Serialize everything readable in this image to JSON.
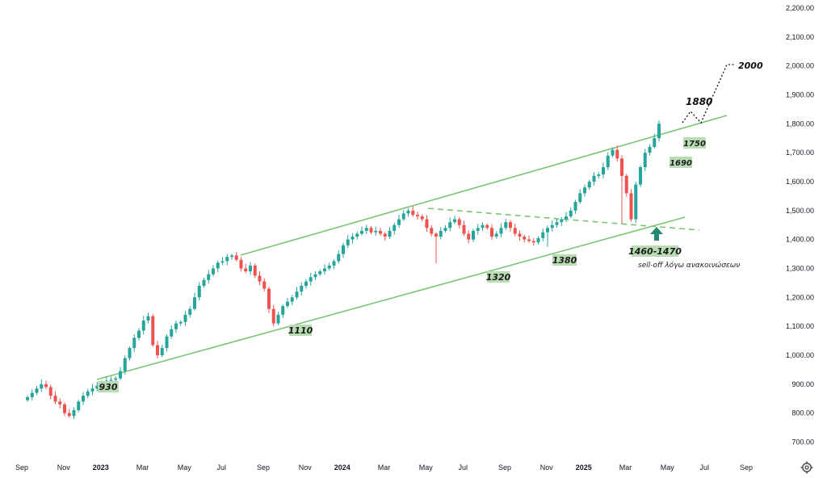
{
  "chart_data": {
    "type": "candlestick",
    "ylim": [
      650,
      2220
    ],
    "yticks": [
      "700.00",
      "800.00",
      "900.00",
      "1,000.00",
      "1,100.00",
      "1,200.00",
      "1,300.00",
      "1,400.00",
      "1,500.00",
      "1,600.00",
      "1,700.00",
      "1,800.00",
      "1,900.00",
      "2,000.00",
      "2,100.00",
      "2,200.00"
    ],
    "ytick_values": [
      700,
      800,
      900,
      1000,
      1100,
      1200,
      1300,
      1400,
      1500,
      1600,
      1700,
      1800,
      1900,
      2000,
      2100,
      2200
    ],
    "xticks": [
      {
        "label": "Sep",
        "week": 0,
        "major": false
      },
      {
        "label": "Nov",
        "week": 9,
        "major": false
      },
      {
        "label": "2023",
        "week": 17,
        "major": true
      },
      {
        "label": "Mar",
        "week": 26,
        "major": false
      },
      {
        "label": "May",
        "week": 35,
        "major": false
      },
      {
        "label": "Jul",
        "week": 43,
        "major": false
      },
      {
        "label": "Sep",
        "week": 52,
        "major": false
      },
      {
        "label": "Nov",
        "week": 61,
        "major": false
      },
      {
        "label": "2024",
        "week": 69,
        "major": true
      },
      {
        "label": "Mar",
        "week": 78,
        "major": false
      },
      {
        "label": "May",
        "week": 87,
        "major": false
      },
      {
        "label": "Jul",
        "week": 95,
        "major": false
      },
      {
        "label": "Sep",
        "week": 104,
        "major": false
      },
      {
        "label": "Nov",
        "week": 113,
        "major": false
      },
      {
        "label": "2025",
        "week": 121,
        "major": true
      },
      {
        "label": "Mar",
        "week": 130,
        "major": false
      },
      {
        "label": "May",
        "week": 139,
        "major": false
      },
      {
        "label": "Jul",
        "week": 147,
        "major": false
      },
      {
        "label": "Sep",
        "week": 156,
        "major": false
      }
    ],
    "closes": [
      855,
      870,
      885,
      900,
      890,
      860,
      840,
      830,
      800,
      790,
      810,
      840,
      860,
      875,
      885,
      895,
      905,
      912,
      915,
      920,
      945,
      990,
      1025,
      1060,
      1085,
      1120,
      1135,
      1035,
      1000,
      1025,
      1065,
      1090,
      1110,
      1115,
      1140,
      1160,
      1200,
      1240,
      1260,
      1280,
      1300,
      1320,
      1325,
      1340,
      1345,
      1330,
      1300,
      1290,
      1310,
      1275,
      1255,
      1230,
      1160,
      1110,
      1140,
      1170,
      1185,
      1200,
      1220,
      1240,
      1255,
      1270,
      1280,
      1290,
      1300,
      1310,
      1325,
      1350,
      1380,
      1400,
      1410,
      1420,
      1430,
      1440,
      1425,
      1430,
      1420,
      1410,
      1430,
      1450,
      1470,
      1490,
      1500,
      1485,
      1480,
      1470,
      1440,
      1420,
      1410,
      1430,
      1440,
      1460,
      1470,
      1450,
      1420,
      1400,
      1430,
      1440,
      1450,
      1440,
      1410,
      1420,
      1440,
      1460,
      1440,
      1420,
      1410,
      1400,
      1395,
      1390,
      1405,
      1425,
      1440,
      1450,
      1460,
      1470,
      1480,
      1500,
      1530,
      1560,
      1580,
      1600,
      1620,
      1625,
      1650,
      1690,
      1710,
      1680,
      1620,
      1560,
      1470,
      1590,
      1650,
      1700,
      1720,
      1750,
      1800
    ],
    "labels": [
      {
        "text": "930",
        "value": 930
      },
      {
        "text": "1110",
        "value": 1110
      },
      {
        "text": "1320",
        "value": 1320
      },
      {
        "text": "1380",
        "value": 1380
      },
      {
        "text": "1460-1470",
        "value": 1465
      },
      {
        "text": "1690",
        "value": 1690
      },
      {
        "text": "1750",
        "value": 1750
      }
    ],
    "targets": [
      {
        "text": "1880",
        "value": 1880
      },
      {
        "text": "2000",
        "value": 2000
      }
    ],
    "annotation": "sell-off λόγω ανακοινώσεων",
    "up_color": "#26a69a",
    "down_color": "#ef5350",
    "channel_color": "#7cc576"
  },
  "ui": {
    "settings_icon": "gear-icon"
  }
}
